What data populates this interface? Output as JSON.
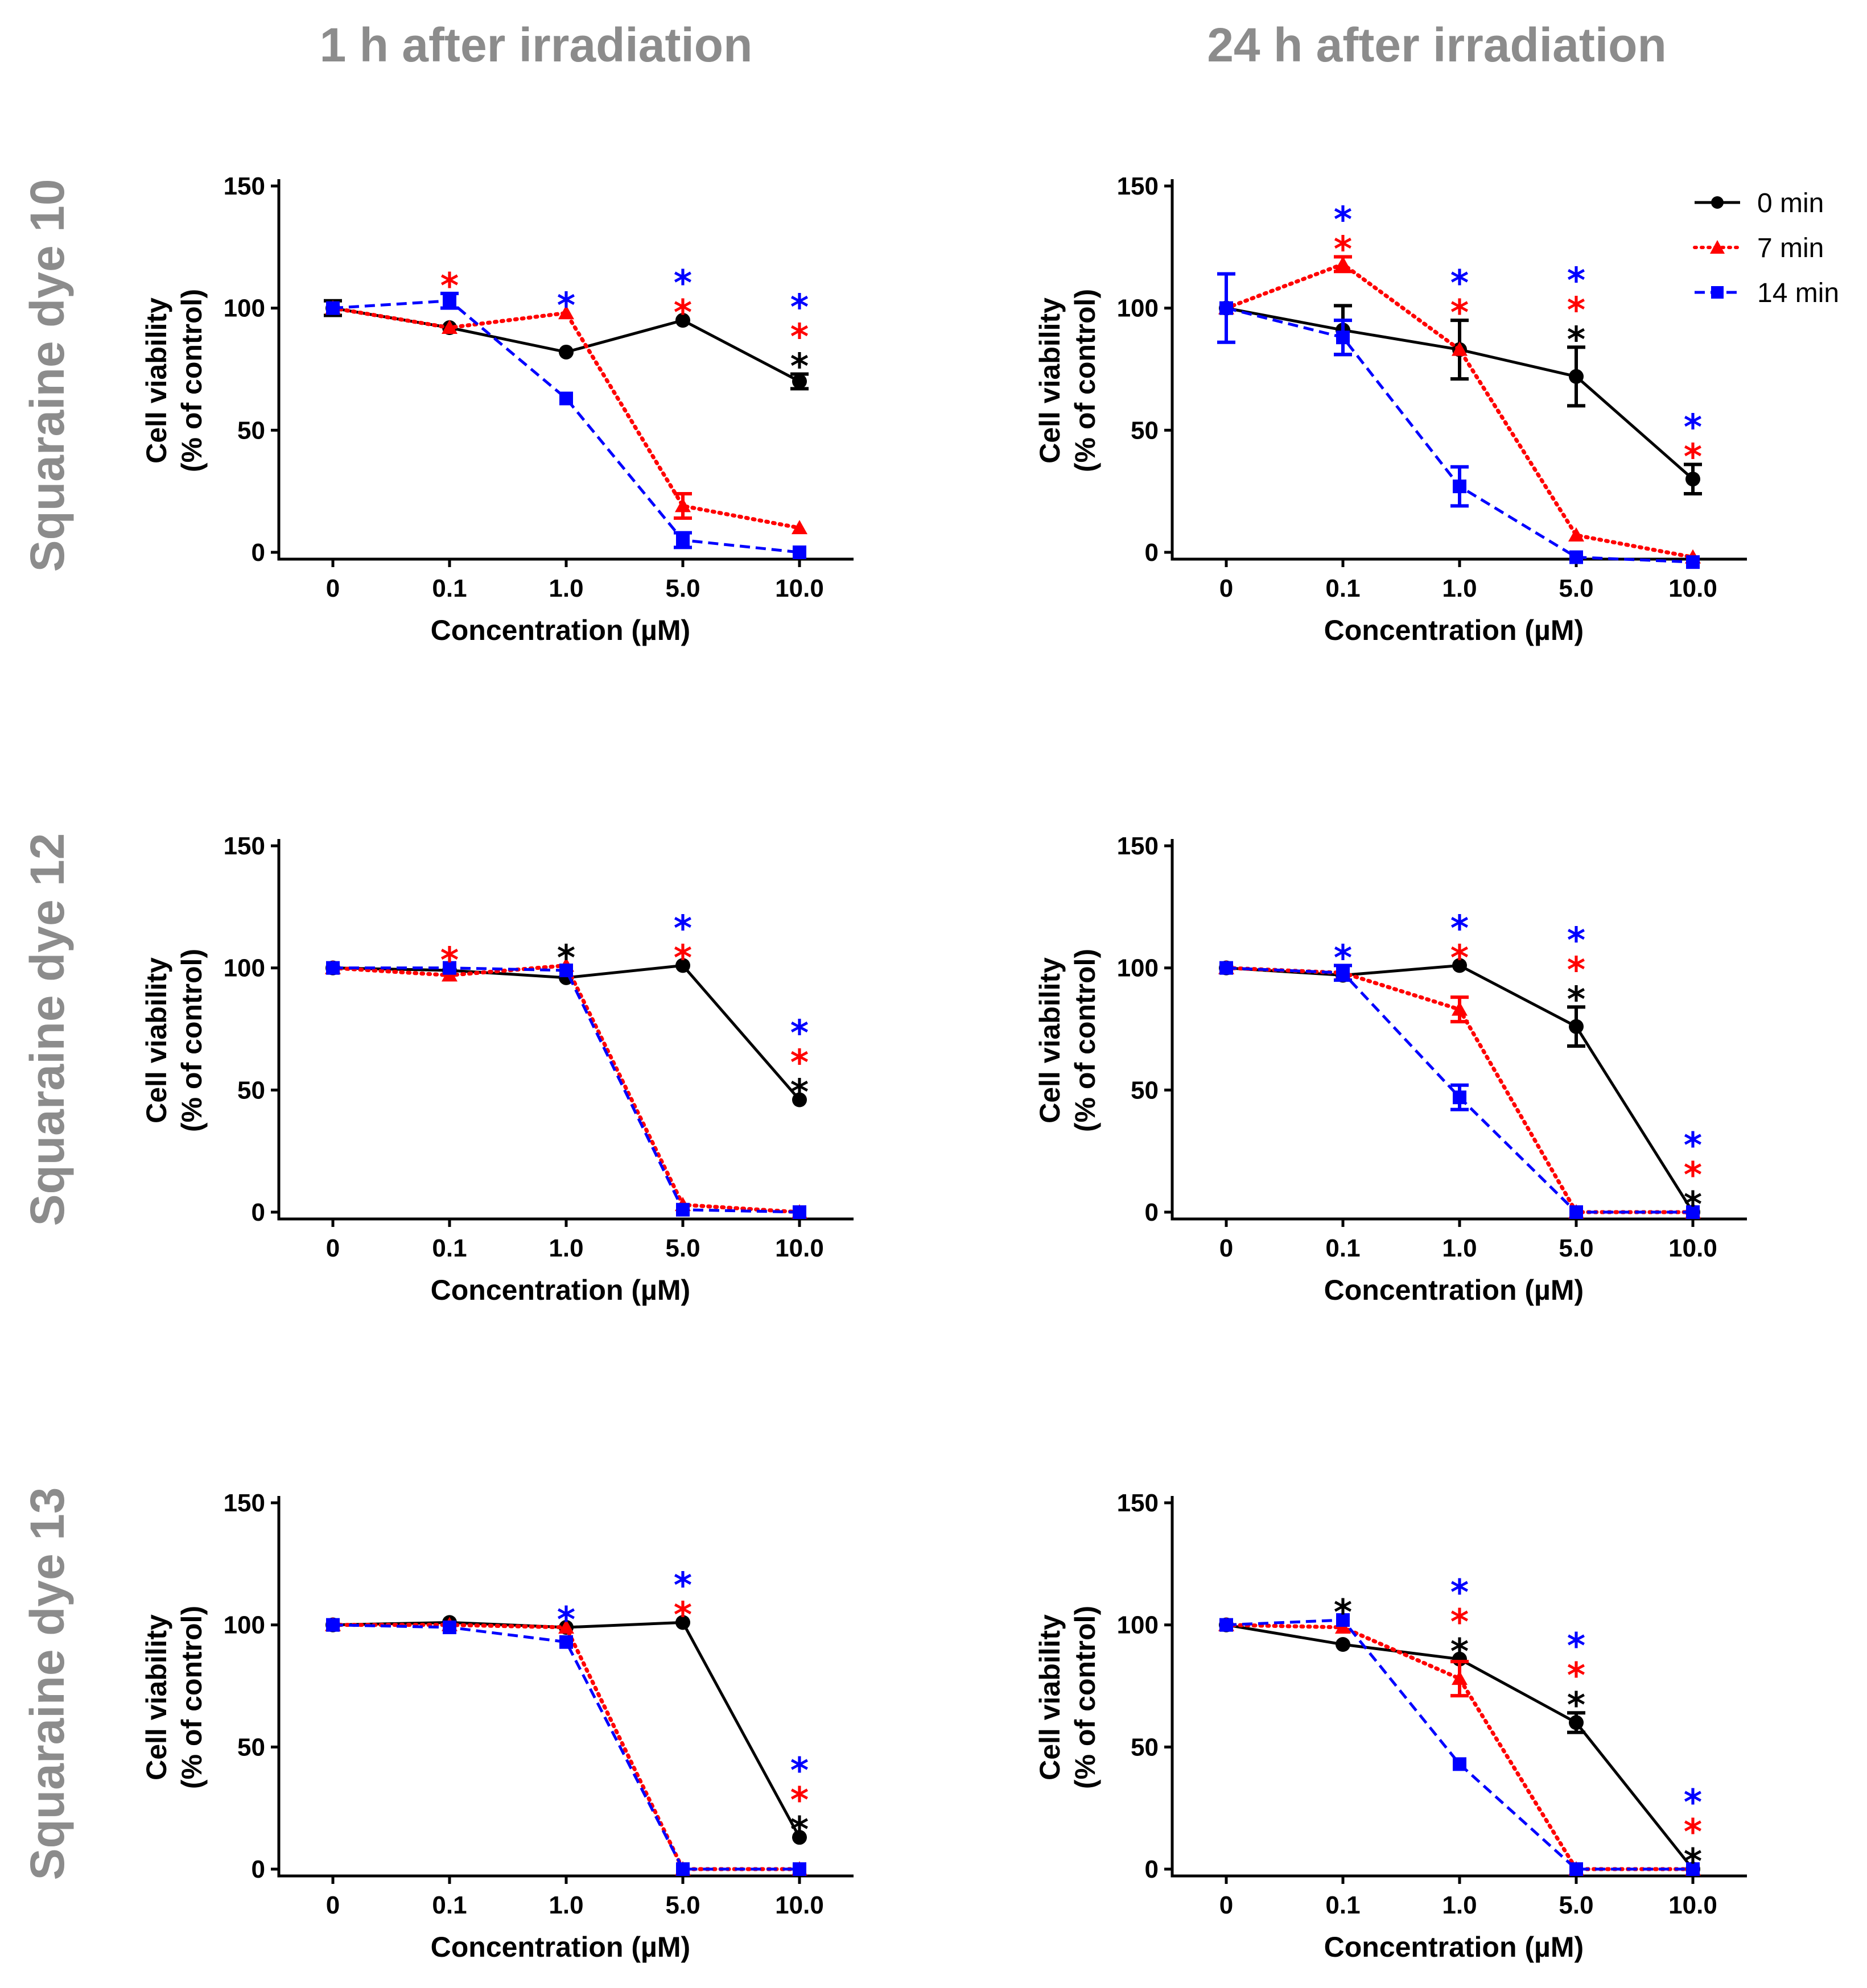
{
  "column_titles": [
    "1 h after irradiation",
    "24 h after irradiation"
  ],
  "row_titles": [
    "Squaraine dye 10",
    "Squaraine dye 12",
    "Squaraine dye 13"
  ],
  "legend": [
    {
      "label": "0 min",
      "color": "#000000",
      "marker": "circle",
      "dash": "solid"
    },
    {
      "label": "7 min",
      "color": "#ff0000",
      "marker": "triangle",
      "dash": "dotted"
    },
    {
      "label": "14 min",
      "color": "#0000ff",
      "marker": "square",
      "dash": "dashed"
    }
  ],
  "star_symbol": "*",
  "chart_data": [
    {
      "type": "line",
      "panel": "dye10-1h",
      "row": 0,
      "col": 0,
      "categories": [
        "0",
        "0.1",
        "1.0",
        "5.0",
        "10.0"
      ],
      "xlabel": "Concentration (µM)",
      "ylabel": [
        "Cell viability",
        "(% of control)"
      ],
      "ylim": [
        0,
        150
      ],
      "yticks": [
        0,
        50,
        100,
        150
      ],
      "series": [
        {
          "name": "0 min",
          "values": [
            100,
            92,
            82,
            95,
            70
          ],
          "errors": [
            3,
            0,
            0,
            0,
            3
          ]
        },
        {
          "name": "7 min",
          "values": [
            100,
            92,
            98,
            19,
            10
          ],
          "errors": [
            0,
            0,
            0,
            5,
            0
          ]
        },
        {
          "name": "14 min",
          "values": [
            100,
            103,
            63,
            5,
            0
          ],
          "errors": [
            0,
            3,
            0,
            3,
            0
          ]
        }
      ],
      "stars": [
        [
          0,
          0,
          0,
          0,
          1
        ],
        [
          0,
          1,
          0,
          1,
          1
        ],
        [
          0,
          0,
          1,
          1,
          1
        ]
      ]
    },
    {
      "type": "line",
      "panel": "dye10-24h",
      "row": 0,
      "col": 1,
      "categories": [
        "0",
        "0.1",
        "1.0",
        "5.0",
        "10.0"
      ],
      "xlabel": "Concentration (µM)",
      "ylabel": [
        "Cell viability",
        "(% of control)"
      ],
      "ylim": [
        0,
        150
      ],
      "yticks": [
        0,
        50,
        100,
        150
      ],
      "series": [
        {
          "name": "0 min",
          "values": [
            100,
            91,
            83,
            72,
            30
          ],
          "errors": [
            0,
            10,
            12,
            12,
            6
          ]
        },
        {
          "name": "7 min",
          "values": [
            100,
            118,
            83,
            7,
            -2
          ],
          "errors": [
            0,
            3,
            0,
            0,
            0
          ]
        },
        {
          "name": "14 min",
          "values": [
            100,
            88,
            27,
            -2,
            -4
          ],
          "errors": [
            14,
            7,
            8,
            0,
            0
          ]
        }
      ],
      "stars": [
        [
          0,
          0,
          0,
          1,
          0
        ],
        [
          0,
          1,
          1,
          1,
          1
        ],
        [
          0,
          1,
          1,
          1,
          1
        ]
      ],
      "show_legend": true
    },
    {
      "type": "line",
      "panel": "dye12-1h",
      "row": 1,
      "col": 0,
      "categories": [
        "0",
        "0.1",
        "1.0",
        "5.0",
        "10.0"
      ],
      "xlabel": "Concentration (µM)",
      "ylabel": [
        "Cell viability",
        "(% of control)"
      ],
      "ylim": [
        0,
        150
      ],
      "yticks": [
        0,
        50,
        100,
        150
      ],
      "series": [
        {
          "name": "0 min",
          "values": [
            100,
            99,
            96,
            101,
            46
          ],
          "errors": [
            0,
            0,
            0,
            0,
            0
          ]
        },
        {
          "name": "7 min",
          "values": [
            100,
            97,
            101,
            3,
            0
          ],
          "errors": [
            0,
            0,
            0,
            0,
            0
          ]
        },
        {
          "name": "14 min",
          "values": [
            100,
            100,
            99,
            1,
            0
          ],
          "errors": [
            0,
            0,
            0,
            0,
            0
          ]
        }
      ],
      "stars": [
        [
          0,
          0,
          1,
          0,
          1
        ],
        [
          0,
          1,
          0,
          1,
          1
        ],
        [
          0,
          0,
          0,
          1,
          1
        ]
      ]
    },
    {
      "type": "line",
      "panel": "dye12-24h",
      "row": 1,
      "col": 1,
      "categories": [
        "0",
        "0.1",
        "1.0",
        "5.0",
        "10.0"
      ],
      "xlabel": "Concentration (µM)",
      "ylabel": [
        "Cell viability",
        "(% of control)"
      ],
      "ylim": [
        0,
        150
      ],
      "yticks": [
        0,
        50,
        100,
        150
      ],
      "series": [
        {
          "name": "0 min",
          "values": [
            100,
            97,
            101,
            76,
            0
          ],
          "errors": [
            0,
            0,
            0,
            8,
            0
          ]
        },
        {
          "name": "7 min",
          "values": [
            100,
            98,
            83,
            0,
            0
          ],
          "errors": [
            0,
            0,
            5,
            0,
            0
          ]
        },
        {
          "name": "14 min",
          "values": [
            100,
            98,
            47,
            0,
            0
          ],
          "errors": [
            0,
            3,
            5,
            0,
            0
          ]
        }
      ],
      "stars": [
        [
          0,
          0,
          0,
          1,
          1
        ],
        [
          0,
          0,
          1,
          1,
          1
        ],
        [
          0,
          1,
          1,
          1,
          1
        ]
      ]
    },
    {
      "type": "line",
      "panel": "dye13-1h",
      "row": 2,
      "col": 0,
      "categories": [
        "0",
        "0.1",
        "1.0",
        "5.0",
        "10.0"
      ],
      "xlabel": "Concentration (µM)",
      "ylabel": [
        "Cell viability",
        "(% of control)"
      ],
      "ylim": [
        0,
        150
      ],
      "yticks": [
        0,
        50,
        100,
        150
      ],
      "series": [
        {
          "name": "0 min",
          "values": [
            100,
            101,
            99,
            101,
            13
          ],
          "errors": [
            0,
            0,
            0,
            0,
            0
          ]
        },
        {
          "name": "7 min",
          "values": [
            100,
            100,
            99,
            0,
            0
          ],
          "errors": [
            0,
            0,
            0,
            0,
            0
          ]
        },
        {
          "name": "14 min",
          "values": [
            100,
            99,
            93,
            0,
            0
          ],
          "errors": [
            0,
            0,
            0,
            0,
            0
          ]
        }
      ],
      "stars": [
        [
          0,
          0,
          0,
          0,
          1
        ],
        [
          0,
          0,
          0,
          1,
          1
        ],
        [
          0,
          0,
          1,
          1,
          1
        ]
      ]
    },
    {
      "type": "line",
      "panel": "dye13-24h",
      "row": 2,
      "col": 1,
      "categories": [
        "0",
        "0.1",
        "1.0",
        "5.0",
        "10.0"
      ],
      "xlabel": "Concentration (µM)",
      "ylabel": [
        "Cell viability",
        "(% of control)"
      ],
      "ylim": [
        0,
        150
      ],
      "yticks": [
        0,
        50,
        100,
        150
      ],
      "series": [
        {
          "name": "0 min",
          "values": [
            100,
            92,
            86,
            60,
            0
          ],
          "errors": [
            0,
            0,
            0,
            4,
            0
          ]
        },
        {
          "name": "7 min",
          "values": [
            100,
            99,
            78,
            0,
            0
          ],
          "errors": [
            0,
            0,
            7,
            0,
            0
          ]
        },
        {
          "name": "14 min",
          "values": [
            100,
            102,
            43,
            0,
            0
          ],
          "errors": [
            0,
            0,
            0,
            0,
            0
          ]
        }
      ],
      "stars": [
        [
          0,
          1,
          1,
          1,
          1
        ],
        [
          0,
          0,
          1,
          1,
          1
        ],
        [
          0,
          0,
          1,
          1,
          1
        ]
      ]
    }
  ]
}
